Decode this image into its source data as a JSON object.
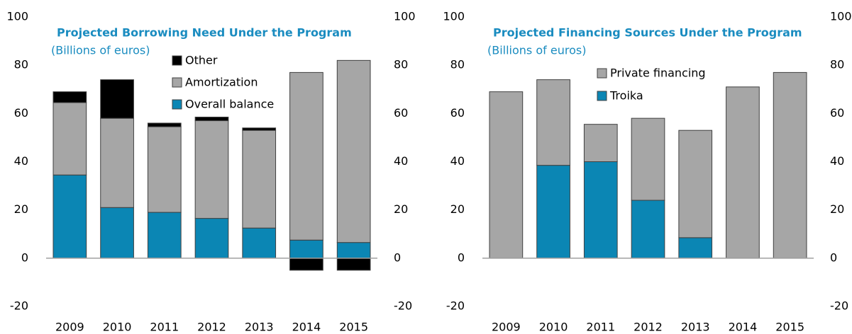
{
  "chart_data": [
    {
      "type": "bar",
      "stacked": true,
      "title": "Projected Borrowing Need Under the Program",
      "subtitle": "(Billions of euros)",
      "categories": [
        "2009",
        "2010",
        "2011",
        "2012",
        "2013",
        "2014",
        "2015"
      ],
      "series": [
        {
          "name": "Overall balance",
          "color": "#0b86b4",
          "values": [
            34.5,
            21,
            19,
            16.5,
            12.5,
            7.5,
            6.5
          ]
        },
        {
          "name": "Amortization",
          "color": "#a6a6a6",
          "values": [
            30,
            37,
            35.5,
            40.5,
            40.5,
            69.5,
            75.5
          ]
        },
        {
          "name": "Other",
          "color": "#000000",
          "values": [
            4.5,
            16,
            1.5,
            1.5,
            1,
            -5,
            -5
          ]
        }
      ],
      "ylim": [
        -20,
        100
      ],
      "yticks": [
        -20,
        0,
        20,
        40,
        60,
        80,
        100
      ],
      "y2lim": [
        -20,
        100
      ],
      "y2ticks": [
        -20,
        0,
        20,
        40,
        60,
        80,
        100
      ]
    },
    {
      "type": "bar",
      "stacked": true,
      "title": "Projected Financing Sources Under the Program",
      "subtitle": "(Billions of euros)",
      "categories": [
        "2009",
        "2010",
        "2011",
        "2012",
        "2013",
        "2014",
        "2015"
      ],
      "series": [
        {
          "name": "Troika",
          "color": "#0b86b4",
          "values": [
            0,
            38.5,
            40,
            24,
            8.5,
            0,
            0
          ]
        },
        {
          "name": "Private financing",
          "color": "#a6a6a6",
          "values": [
            69,
            35.5,
            15.5,
            34,
            44.5,
            71,
            77
          ]
        }
      ],
      "ylim": [
        -20,
        100
      ],
      "yticks": [
        -20,
        0,
        20,
        40,
        60,
        80,
        100
      ],
      "y2lim": [
        -20,
        100
      ],
      "y2ticks": [
        -20,
        0,
        20,
        40,
        60,
        80,
        100
      ]
    }
  ]
}
